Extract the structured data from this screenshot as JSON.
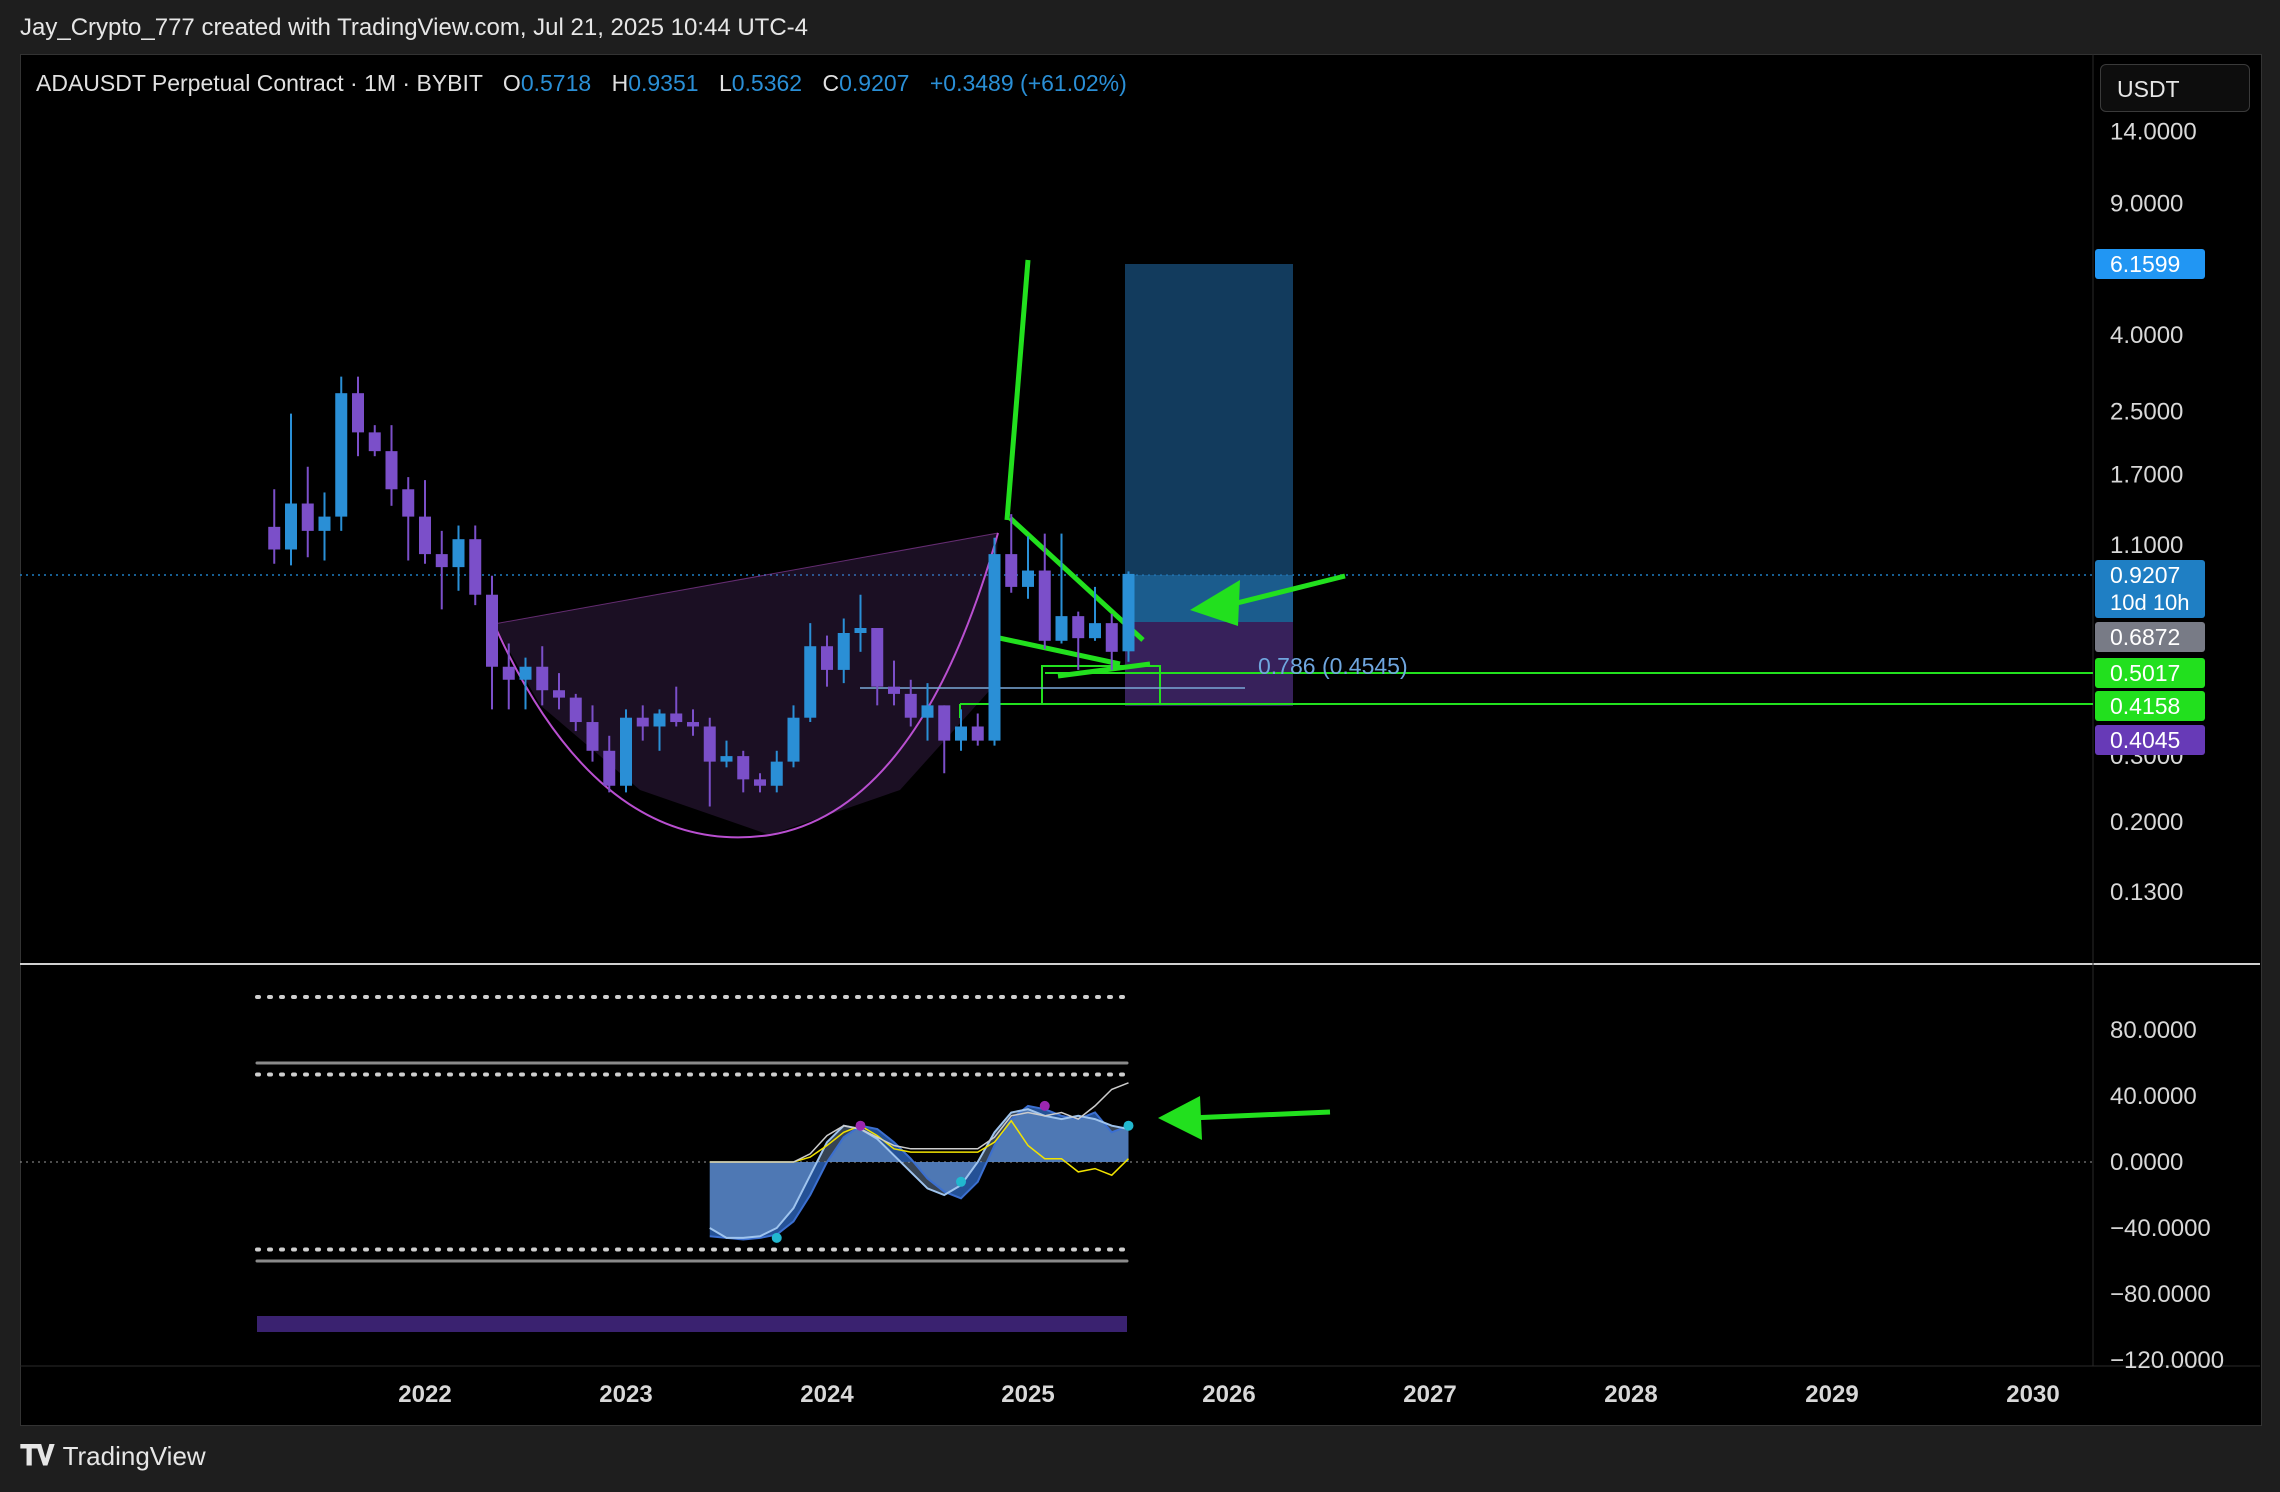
{
  "header": {
    "attribution": "Jay_Crypto_777 created with TradingView.com, Jul 21, 2025 10:44 UTC-4"
  },
  "legend": {
    "symbol": "ADAUSDT Perpetual Contract · 1M · BYBIT",
    "open_key": "O",
    "open": "0.5718",
    "high_key": "H",
    "high": "0.9351",
    "low_key": "L",
    "low": "0.5362",
    "close_key": "C",
    "close": "0.9207",
    "change": "+0.3489 (+61.02%)"
  },
  "currency": "USDT",
  "footer": {
    "brand": "TradingView",
    "logo": "tradingview-logo-icon"
  },
  "colors": {
    "up": "#2a8fd6",
    "down": "#7b4fc9",
    "green_annotation": "#22e01e",
    "target_box": "#1b6fb0",
    "stop_box": "#4a2c7a",
    "cup": "#b94fd0"
  },
  "chart_data": [
    {
      "type": "candlestick",
      "scale": "log",
      "x_axis_labels": [
        "2022",
        "2023",
        "2024",
        "2025",
        "2026",
        "2027",
        "2028",
        "2029",
        "2030"
      ],
      "y_axis_labels": [
        "14.0000",
        "9.0000",
        "4.0000",
        "2.5000",
        "1.7000",
        "1.1000",
        "0.3000",
        "0.2000",
        "0.1300"
      ],
      "price_tags": [
        {
          "value": "6.1599",
          "color": "#2196f3"
        },
        {
          "value": "0.9207",
          "sub": "10d 10h",
          "color": "#1f7fc4"
        },
        {
          "value": "0.6872",
          "color": "#787b86"
        },
        {
          "value": "0.5017",
          "color": "#22e01e"
        },
        {
          "value": "0.4158",
          "color": "#22e01e"
        },
        {
          "value": "0.4045",
          "color": "#673ab7"
        }
      ],
      "annotation_fib": "0.786 (0.4545)",
      "candles": [
        {
          "t": "2021-04",
          "o": 1.23,
          "h": 1.55,
          "l": 0.98,
          "c": 1.07
        },
        {
          "t": "2021-05",
          "o": 1.07,
          "h": 2.47,
          "l": 0.97,
          "c": 1.42
        },
        {
          "t": "2021-06",
          "o": 1.42,
          "h": 1.78,
          "l": 1.02,
          "c": 1.2
        },
        {
          "t": "2021-07",
          "o": 1.2,
          "h": 1.52,
          "l": 1.0,
          "c": 1.31
        },
        {
          "t": "2021-08",
          "o": 1.31,
          "h": 3.1,
          "l": 1.2,
          "c": 2.8
        },
        {
          "t": "2021-09",
          "o": 2.8,
          "h": 3.1,
          "l": 1.9,
          "c": 2.2
        },
        {
          "t": "2021-10",
          "o": 2.2,
          "h": 2.3,
          "l": 1.9,
          "c": 1.96
        },
        {
          "t": "2021-11",
          "o": 1.96,
          "h": 2.3,
          "l": 1.4,
          "c": 1.55
        },
        {
          "t": "2021-12",
          "o": 1.55,
          "h": 1.67,
          "l": 1.0,
          "c": 1.31
        },
        {
          "t": "2022-01",
          "o": 1.31,
          "h": 1.64,
          "l": 0.98,
          "c": 1.04
        },
        {
          "t": "2022-02",
          "o": 1.04,
          "h": 1.2,
          "l": 0.74,
          "c": 0.96
        },
        {
          "t": "2022-03",
          "o": 0.96,
          "h": 1.24,
          "l": 0.83,
          "c": 1.14
        },
        {
          "t": "2022-04",
          "o": 1.14,
          "h": 1.24,
          "l": 0.76,
          "c": 0.81
        },
        {
          "t": "2022-05",
          "o": 0.81,
          "h": 0.91,
          "l": 0.4,
          "c": 0.52
        },
        {
          "t": "2022-06",
          "o": 0.52,
          "h": 0.6,
          "l": 0.4,
          "c": 0.48
        },
        {
          "t": "2022-07",
          "o": 0.48,
          "h": 0.55,
          "l": 0.4,
          "c": 0.52
        },
        {
          "t": "2022-08",
          "o": 0.52,
          "h": 0.59,
          "l": 0.41,
          "c": 0.45
        },
        {
          "t": "2022-09",
          "o": 0.45,
          "h": 0.5,
          "l": 0.4,
          "c": 0.43
        },
        {
          "t": "2022-10",
          "o": 0.43,
          "h": 0.44,
          "l": 0.35,
          "c": 0.37
        },
        {
          "t": "2022-11",
          "o": 0.37,
          "h": 0.41,
          "l": 0.29,
          "c": 0.31
        },
        {
          "t": "2022-12",
          "o": 0.31,
          "h": 0.34,
          "l": 0.24,
          "c": 0.25
        },
        {
          "t": "2023-01",
          "o": 0.25,
          "h": 0.4,
          "l": 0.24,
          "c": 0.38
        },
        {
          "t": "2023-02",
          "o": 0.38,
          "h": 0.41,
          "l": 0.33,
          "c": 0.36
        },
        {
          "t": "2023-03",
          "o": 0.36,
          "h": 0.4,
          "l": 0.31,
          "c": 0.39
        },
        {
          "t": "2023-04",
          "o": 0.39,
          "h": 0.46,
          "l": 0.36,
          "c": 0.37
        },
        {
          "t": "2023-05",
          "o": 0.37,
          "h": 0.4,
          "l": 0.34,
          "c": 0.36
        },
        {
          "t": "2023-06",
          "o": 0.36,
          "h": 0.38,
          "l": 0.22,
          "c": 0.29
        },
        {
          "t": "2023-07",
          "o": 0.29,
          "h": 0.33,
          "l": 0.28,
          "c": 0.3
        },
        {
          "t": "2023-08",
          "o": 0.3,
          "h": 0.31,
          "l": 0.24,
          "c": 0.26
        },
        {
          "t": "2023-09",
          "o": 0.26,
          "h": 0.27,
          "l": 0.24,
          "c": 0.25
        },
        {
          "t": "2023-10",
          "o": 0.25,
          "h": 0.31,
          "l": 0.24,
          "c": 0.29
        },
        {
          "t": "2023-11",
          "o": 0.29,
          "h": 0.41,
          "l": 0.28,
          "c": 0.38
        },
        {
          "t": "2023-12",
          "o": 0.38,
          "h": 0.68,
          "l": 0.37,
          "c": 0.59
        },
        {
          "t": "2024-01",
          "o": 0.59,
          "h": 0.63,
          "l": 0.46,
          "c": 0.51
        },
        {
          "t": "2024-02",
          "o": 0.51,
          "h": 0.7,
          "l": 0.47,
          "c": 0.64
        },
        {
          "t": "2024-03",
          "o": 0.64,
          "h": 0.81,
          "l": 0.57,
          "c": 0.66
        },
        {
          "t": "2024-04",
          "o": 0.66,
          "h": 0.66,
          "l": 0.41,
          "c": 0.46
        },
        {
          "t": "2024-05",
          "o": 0.46,
          "h": 0.54,
          "l": 0.41,
          "c": 0.44
        },
        {
          "t": "2024-06",
          "o": 0.44,
          "h": 0.48,
          "l": 0.36,
          "c": 0.38
        },
        {
          "t": "2024-07",
          "o": 0.38,
          "h": 0.47,
          "l": 0.33,
          "c": 0.41
        },
        {
          "t": "2024-08",
          "o": 0.41,
          "h": 0.41,
          "l": 0.27,
          "c": 0.33
        },
        {
          "t": "2024-09",
          "o": 0.33,
          "h": 0.4,
          "l": 0.31,
          "c": 0.36
        },
        {
          "t": "2024-10",
          "o": 0.36,
          "h": 0.39,
          "l": 0.32,
          "c": 0.33
        },
        {
          "t": "2024-11",
          "o": 0.33,
          "h": 1.15,
          "l": 0.32,
          "c": 1.04
        },
        {
          "t": "2024-12",
          "o": 1.04,
          "h": 1.33,
          "l": 0.82,
          "c": 0.85
        },
        {
          "t": "2025-01",
          "o": 0.85,
          "h": 1.16,
          "l": 0.79,
          "c": 0.94
        },
        {
          "t": "2025-02",
          "o": 0.94,
          "h": 1.18,
          "l": 0.58,
          "c": 0.61
        },
        {
          "t": "2025-03",
          "o": 0.61,
          "h": 1.18,
          "l": 0.6,
          "c": 0.71
        },
        {
          "t": "2025-04",
          "o": 0.71,
          "h": 0.73,
          "l": 0.51,
          "c": 0.62
        },
        {
          "t": "2025-05",
          "o": 0.62,
          "h": 0.85,
          "l": 0.61,
          "c": 0.68
        },
        {
          "t": "2025-06",
          "o": 0.68,
          "h": 0.72,
          "l": 0.51,
          "c": 0.57
        },
        {
          "t": "2025-07",
          "o": 0.5718,
          "h": 0.9351,
          "l": 0.5362,
          "c": 0.9207
        }
      ]
    },
    {
      "type": "area",
      "name": "",
      "y_axis_labels": [
        "80.0000",
        "40.0000",
        "0.0000",
        "−40.0000",
        "−80.0000",
        "−120.0000"
      ],
      "ylim": [
        -120,
        100
      ],
      "x": [
        "2023-06",
        "2023-07",
        "2023-08",
        "2023-09",
        "2023-10",
        "2023-11",
        "2023-12",
        "2024-01",
        "2024-02",
        "2024-03",
        "2024-04",
        "2024-05",
        "2024-06",
        "2024-07",
        "2024-08",
        "2024-09",
        "2024-10",
        "2024-11",
        "2024-12",
        "2025-01",
        "2025-02",
        "2025-03",
        "2025-04",
        "2025-05",
        "2025-06",
        "2025-07"
      ],
      "series": [
        {
          "name": "",
          "values": [
            -45,
            -46,
            -47,
            -46,
            -44,
            -36,
            -20,
            0,
            15,
            22,
            20,
            12,
            2,
            -10,
            -18,
            -22,
            -12,
            10,
            26,
            34,
            32,
            28,
            26,
            30,
            18,
            22
          ]
        },
        {
          "name": "",
          "values": [
            -40,
            -46,
            -46,
            -45,
            -40,
            -28,
            -8,
            12,
            22,
            20,
            14,
            4,
            -6,
            -16,
            -20,
            -14,
            0,
            18,
            30,
            32,
            28,
            26,
            28,
            26,
            22,
            20
          ]
        },
        {
          "name": "",
          "values": [
            0,
            0,
            0,
            0,
            0,
            0,
            3,
            10,
            18,
            22,
            16,
            8,
            6,
            6,
            6,
            6,
            6,
            12,
            25,
            10,
            2,
            2,
            -6,
            -4,
            -8,
            2
          ]
        },
        {
          "name": "",
          "values": [
            0,
            0,
            0,
            0,
            0,
            0,
            5,
            16,
            22,
            20,
            15,
            10,
            8,
            8,
            8,
            8,
            8,
            15,
            28,
            30,
            28,
            30,
            26,
            34,
            44,
            48
          ]
        }
      ],
      "markers": [
        {
          "t": "2023-10",
          "y": -46,
          "color": "#22b8cf"
        },
        {
          "t": "2024-03",
          "y": 22,
          "color": "#9c27b0"
        },
        {
          "t": "2024-09",
          "y": -12,
          "color": "#22b8cf"
        },
        {
          "t": "2025-02",
          "y": 34,
          "color": "#9c27b0"
        },
        {
          "t": "2025-07",
          "y": 22,
          "color": "#22b8cf"
        }
      ],
      "levels": [
        100,
        60,
        53,
        -53,
        -60
      ],
      "zero_line": 0
    }
  ]
}
